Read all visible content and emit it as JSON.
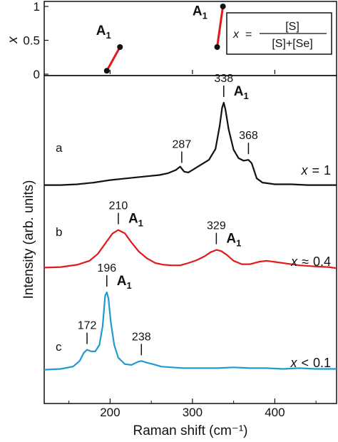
{
  "chart_data": [
    {
      "type": "scatter",
      "panel": "top",
      "ylabel": "x",
      "ylim": [
        0,
        1
      ],
      "yticks": [
        "0",
        "0.5",
        "1"
      ],
      "xlim": [
        120,
        475
      ],
      "series": [
        {
          "name": "A1",
          "points": [
            [
              196,
              0.05
            ],
            [
              212,
              0.4
            ]
          ],
          "color": "#e31a1c"
        },
        {
          "name": "A1",
          "points": [
            [
              330,
              0.4
            ],
            [
              337,
              1.0
            ]
          ],
          "color": "#e31a1c"
        }
      ],
      "annotations": [
        {
          "text": "A",
          "sub": "1",
          "x": 183,
          "y": 0.58
        },
        {
          "text": "A",
          "sub": "1",
          "x": 300,
          "y": 0.87
        }
      ],
      "formula": {
        "lhs": "x",
        "eq": "=",
        "numerator": "[S]",
        "denominator": "[S]+[Se]"
      }
    },
    {
      "type": "line",
      "panel": "bottom",
      "xlabel": "Raman shift (cm⁻¹)",
      "ylabel": "Intensity (arb. units)",
      "xlim": [
        120,
        475
      ],
      "xticks": [
        "200",
        "300",
        "400"
      ],
      "series": [
        {
          "letter": "a",
          "x_label": "x",
          "x_rel": "=",
          "x_value": "1",
          "color": "#111111",
          "points": [
            [
              120,
              0.02
            ],
            [
              140,
              0.02
            ],
            [
              160,
              0.03
            ],
            [
              180,
              0.05
            ],
            [
              200,
              0.08
            ],
            [
              220,
              0.1
            ],
            [
              240,
              0.12
            ],
            [
              260,
              0.14
            ],
            [
              270,
              0.16
            ],
            [
              280,
              0.2
            ],
            [
              285,
              0.24
            ],
            [
              290,
              0.18
            ],
            [
              295,
              0.17
            ],
            [
              300,
              0.2
            ],
            [
              310,
              0.26
            ],
            [
              320,
              0.32
            ],
            [
              328,
              0.45
            ],
            [
              333,
              0.72
            ],
            [
              336,
              0.94
            ],
            [
              338,
              1.0
            ],
            [
              340,
              0.92
            ],
            [
              344,
              0.68
            ],
            [
              350,
              0.44
            ],
            [
              356,
              0.34
            ],
            [
              362,
              0.31
            ],
            [
              368,
              0.32
            ],
            [
              372,
              0.28
            ],
            [
              378,
              0.1
            ],
            [
              385,
              0.05
            ],
            [
              400,
              0.03
            ],
            [
              420,
              0.03
            ],
            [
              440,
              0.02
            ],
            [
              460,
              0.02
            ],
            [
              475,
              0.02
            ]
          ]
        },
        {
          "letter": "b",
          "x_label": "x",
          "x_rel": "≈",
          "x_value": "0.4",
          "color": "#e31a1c",
          "points": [
            [
              120,
              0.02
            ],
            [
              140,
              0.03
            ],
            [
              160,
              0.07
            ],
            [
              175,
              0.14
            ],
            [
              185,
              0.26
            ],
            [
              195,
              0.46
            ],
            [
              203,
              0.62
            ],
            [
              210,
              0.68
            ],
            [
              218,
              0.62
            ],
            [
              226,
              0.46
            ],
            [
              235,
              0.3
            ],
            [
              245,
              0.18
            ],
            [
              255,
              0.1
            ],
            [
              265,
              0.07
            ],
            [
              275,
              0.06
            ],
            [
              285,
              0.06
            ],
            [
              295,
              0.1
            ],
            [
              305,
              0.15
            ],
            [
              315,
              0.22
            ],
            [
              322,
              0.29
            ],
            [
              329,
              0.33
            ],
            [
              335,
              0.31
            ],
            [
              342,
              0.24
            ],
            [
              350,
              0.14
            ],
            [
              360,
              0.08
            ],
            [
              370,
              0.08
            ],
            [
              380,
              0.12
            ],
            [
              390,
              0.14
            ],
            [
              400,
              0.12
            ],
            [
              415,
              0.09
            ],
            [
              430,
              0.06
            ],
            [
              450,
              0.04
            ],
            [
              465,
              0.03
            ],
            [
              475,
              0.01
            ]
          ]
        },
        {
          "letter": "c",
          "x_label": "x",
          "x_rel": "<",
          "x_value": "0.1",
          "color": "#1f9bd1",
          "points": [
            [
              120,
              0.03
            ],
            [
              140,
              0.04
            ],
            [
              155,
              0.07
            ],
            [
              163,
              0.14
            ],
            [
              168,
              0.24
            ],
            [
              172,
              0.28
            ],
            [
              177,
              0.26
            ],
            [
              182,
              0.26
            ],
            [
              187,
              0.34
            ],
            [
              191,
              0.58
            ],
            [
              194,
              0.96
            ],
            [
              196,
              1.0
            ],
            [
              198,
              0.92
            ],
            [
              201,
              0.62
            ],
            [
              205,
              0.34
            ],
            [
              210,
              0.18
            ],
            [
              218,
              0.1
            ],
            [
              226,
              0.09
            ],
            [
              234,
              0.13
            ],
            [
              238,
              0.14
            ],
            [
              244,
              0.12
            ],
            [
              252,
              0.1
            ],
            [
              262,
              0.07
            ],
            [
              275,
              0.06
            ],
            [
              290,
              0.05
            ],
            [
              310,
              0.05
            ],
            [
              330,
              0.05
            ],
            [
              350,
              0.06
            ],
            [
              370,
              0.05
            ],
            [
              390,
              0.05
            ],
            [
              410,
              0.04
            ],
            [
              430,
              0.05
            ],
            [
              450,
              0.04
            ],
            [
              475,
              0.04
            ]
          ]
        }
      ],
      "peaks": [
        {
          "series": 0,
          "x": 287,
          "label": "287"
        },
        {
          "series": 0,
          "x": 338,
          "label": "338",
          "mode": "A",
          "mode_sub": "1"
        },
        {
          "series": 0,
          "x": 368,
          "label": "368"
        },
        {
          "series": 1,
          "x": 210,
          "label": "210",
          "mode": "A",
          "mode_sub": "1"
        },
        {
          "series": 1,
          "x": 329,
          "label": "329",
          "mode": "A",
          "mode_sub": "1"
        },
        {
          "series": 2,
          "x": 172,
          "label": "172"
        },
        {
          "series": 2,
          "x": 196,
          "label": "196",
          "mode": "A",
          "mode_sub": "1"
        },
        {
          "series": 2,
          "x": 238,
          "label": "238"
        }
      ]
    }
  ]
}
